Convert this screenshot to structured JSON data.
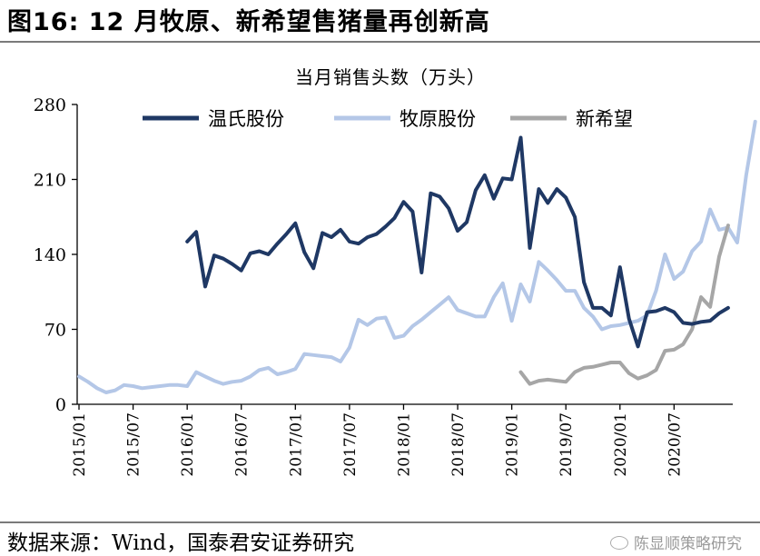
{
  "figure": {
    "title": "图16: 12 月牧原、新希望售猪量再创新高",
    "source": "数据来源：Wind，国泰君安证券研究",
    "watermark": "陈显顺策略研究"
  },
  "chart_data": {
    "type": "line",
    "title": "当月销售头数（万头）",
    "xlabel": "",
    "ylabel": "",
    "ylim": [
      0,
      280
    ],
    "yticks": [
      0,
      70,
      140,
      210,
      280
    ],
    "xticks": [
      "2015/01",
      "2015/07",
      "2016/01",
      "2016/07",
      "2017/01",
      "2017/07",
      "2018/01",
      "2018/07",
      "2019/01",
      "2019/07",
      "2020/01",
      "2020/07"
    ],
    "x_start": "2015/01",
    "legend_position": "top",
    "grid": false,
    "series": [
      {
        "name": "温氏股份",
        "color": "#1f3864",
        "start": "2016/01",
        "values": [
          152,
          161,
          110,
          139,
          136,
          131,
          125,
          141,
          143,
          140,
          150,
          159,
          169,
          142,
          127,
          160,
          156,
          163,
          152,
          150,
          156,
          159,
          166,
          174,
          189,
          180,
          123,
          197,
          194,
          183,
          162,
          170,
          200,
          214,
          192,
          211,
          210,
          249,
          146,
          201,
          188,
          201,
          193,
          175,
          114,
          90,
          90,
          83,
          128,
          80,
          54,
          86,
          87,
          90,
          86,
          76,
          75,
          77,
          78,
          85,
          90
        ]
      },
      {
        "name": "牧原股份",
        "color": "#b4c7e7",
        "start": "2015/01",
        "values": [
          26,
          21,
          15,
          11,
          13,
          18,
          17,
          15,
          16,
          17,
          18,
          18,
          17,
          30,
          26,
          22,
          19,
          21,
          22,
          26,
          32,
          34,
          28,
          30,
          33,
          47,
          46,
          45,
          44,
          40,
          53,
          79,
          74,
          80,
          81,
          62,
          64,
          73,
          79,
          86,
          93,
          100,
          88,
          85,
          82,
          82,
          100,
          113,
          78,
          112,
          96,
          133,
          125,
          116,
          106,
          106,
          90,
          82,
          70,
          73,
          74,
          76,
          78,
          83,
          106,
          140,
          117,
          124,
          143,
          152,
          182,
          163,
          165,
          151,
          214,
          264
        ]
      },
      {
        "name": "新希望",
        "color": "#a6a6a6",
        "start": "2019/02",
        "values": [
          30,
          19,
          22,
          23,
          22,
          21,
          30,
          34,
          35,
          37,
          39,
          39,
          29,
          24,
          27,
          32,
          50,
          51,
          56,
          70,
          100,
          91,
          138,
          167
        ]
      }
    ]
  }
}
